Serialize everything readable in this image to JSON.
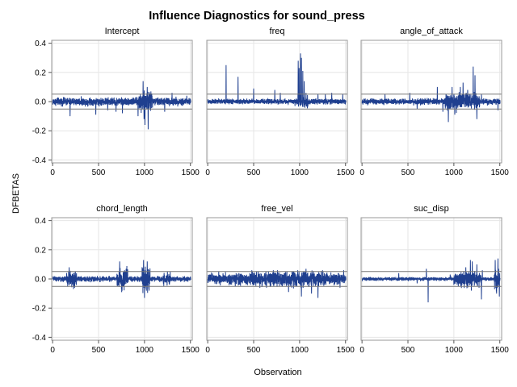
{
  "chart_data": {
    "type": "line",
    "title": "Influence Diagnostics for sound_press",
    "xlabel": "Observation",
    "ylabel": "DFBETAS",
    "xlim": [
      -10,
      1520
    ],
    "ylim": [
      -0.42,
      0.42
    ],
    "x_ticks": [
      0,
      500,
      1000,
      1500
    ],
    "y_ticks": [
      -0.4,
      -0.2,
      0.0,
      0.2,
      0.4
    ],
    "reference_lines": [
      0.0514,
      -0.0514
    ],
    "grid": true,
    "colors": {
      "series": "#1f3f8f",
      "reference": "#777777",
      "frame": "#9a9a9a",
      "grid": "#e6e6e6"
    },
    "panels": [
      {
        "name": "Intercept",
        "baseline_noise": 0.018,
        "bursts": [
          [
            940,
            1090,
            0.045
          ]
        ],
        "spikes": [
          [
            190,
            -0.1
          ],
          [
            470,
            -0.09
          ],
          [
            600,
            -0.06
          ],
          [
            690,
            -0.07
          ],
          [
            760,
            -0.08
          ],
          [
            930,
            -0.1
          ],
          [
            985,
            0.14
          ],
          [
            995,
            -0.12
          ],
          [
            1005,
            -0.16
          ],
          [
            1030,
            0.1
          ],
          [
            1040,
            -0.19
          ],
          [
            1070,
            0.07
          ],
          [
            1220,
            -0.07
          ],
          [
            1300,
            0.06
          ],
          [
            1460,
            0.04
          ]
        ]
      },
      {
        "name": "freq",
        "baseline_noise": 0.012,
        "bursts": [
          [
            980,
            1090,
            0.03
          ]
        ],
        "spikes": [
          [
            200,
            0.25
          ],
          [
            330,
            0.17
          ],
          [
            500,
            0.09
          ],
          [
            730,
            0.08
          ],
          [
            790,
            0.06
          ],
          [
            985,
            0.28
          ],
          [
            995,
            0.23
          ],
          [
            1010,
            0.33
          ],
          [
            1020,
            0.3
          ],
          [
            1035,
            0.21
          ],
          [
            1050,
            0.14
          ],
          [
            1070,
            0.06
          ],
          [
            1200,
            0.05
          ],
          [
            1280,
            0.05
          ],
          [
            1350,
            0.06
          ],
          [
            1470,
            0.05
          ],
          [
            950,
            -0.03
          ]
        ]
      },
      {
        "name": "angle_of_attack",
        "baseline_noise": 0.014,
        "bursts": [
          [
            900,
            1280,
            0.04
          ]
        ],
        "spikes": [
          [
            250,
            0.05
          ],
          [
            520,
            0.06
          ],
          [
            600,
            -0.05
          ],
          [
            820,
            0.1
          ],
          [
            880,
            -0.07
          ],
          [
            940,
            -0.14
          ],
          [
            980,
            0.1
          ],
          [
            1010,
            -0.09
          ],
          [
            1070,
            0.1
          ],
          [
            1100,
            0.13
          ],
          [
            1150,
            0.08
          ],
          [
            1210,
            0.24
          ],
          [
            1230,
            0.18
          ],
          [
            1250,
            -0.12
          ],
          [
            1300,
            0.05
          ],
          [
            1480,
            -0.06
          ]
        ]
      },
      {
        "name": "chord_length",
        "baseline_noise": 0.012,
        "bursts": [
          [
            150,
            260,
            0.04
          ],
          [
            700,
            820,
            0.045
          ],
          [
            970,
            1060,
            0.06
          ],
          [
            1200,
            1280,
            0.03
          ]
        ],
        "spikes": [
          [
            180,
            0.08
          ],
          [
            240,
            -0.06
          ],
          [
            730,
            0.12
          ],
          [
            760,
            -0.05
          ],
          [
            800,
            0.07
          ],
          [
            990,
            0.13
          ],
          [
            1000,
            -0.13
          ],
          [
            1030,
            0.12
          ],
          [
            1050,
            -0.08
          ],
          [
            1250,
            0.05
          ]
        ]
      },
      {
        "name": "free_vel",
        "baseline_noise": 0.025,
        "bursts": [
          [
            450,
            1300,
            0.035
          ]
        ],
        "spikes": [
          [
            120,
            0.05
          ],
          [
            300,
            -0.05
          ],
          [
            480,
            0.06
          ],
          [
            550,
            0.05
          ],
          [
            640,
            -0.06
          ],
          [
            760,
            0.06
          ],
          [
            880,
            -0.09
          ],
          [
            980,
            0.06
          ],
          [
            1020,
            -0.12
          ],
          [
            1070,
            0.07
          ],
          [
            1130,
            -0.1
          ],
          [
            1200,
            -0.13
          ],
          [
            1250,
            0.06
          ],
          [
            1440,
            -0.06
          ],
          [
            1480,
            0.06
          ]
        ]
      },
      {
        "name": "suc_disp",
        "baseline_noise": 0.008,
        "bursts": [
          [
            1000,
            1300,
            0.035
          ],
          [
            1440,
            1500,
            0.05
          ]
        ],
        "spikes": [
          [
            400,
            0.04
          ],
          [
            600,
            -0.03
          ],
          [
            700,
            0.07
          ],
          [
            720,
            -0.16
          ],
          [
            960,
            0.03
          ],
          [
            1130,
            0.08
          ],
          [
            1180,
            0.13
          ],
          [
            1190,
            -0.08
          ],
          [
            1200,
            0.12
          ],
          [
            1250,
            0.1
          ],
          [
            1300,
            -0.14
          ],
          [
            1310,
            0.06
          ],
          [
            1450,
            0.13
          ],
          [
            1465,
            -0.1
          ],
          [
            1480,
            0.14
          ],
          [
            1495,
            -0.12
          ],
          [
            1505,
            0.08
          ]
        ]
      }
    ]
  }
}
